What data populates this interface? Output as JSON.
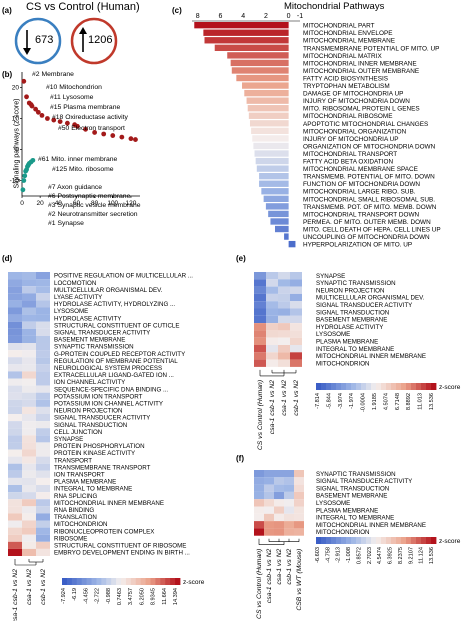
{
  "panel_a": {
    "label": "(a)",
    "title": "CS vs Control (Human)",
    "down_count": "673",
    "up_count": "1206",
    "down_color": "#3a7fc0",
    "up_color": "#c0392b"
  },
  "panel_b": {
    "label": "(b)",
    "ylabel": "Signaling pathways (z-score)",
    "yticks": [
      "20",
      "10",
      "0",
      "-10"
    ],
    "xticks": [
      "0",
      "20",
      "40",
      "60",
      "80",
      "100",
      "120"
    ],
    "up_annotations": [
      "#2 Membrane",
      "#10 Mitochondrion",
      "#11 Lysosome",
      "#15 Plasma membrane",
      "#18 Oxireductase activity",
      "#50 Electron transport",
      "#61 Mito. inner membrane",
      "#125 Mito. ribosome"
    ],
    "down_annotations": [
      "#7 Axon guidance",
      "#6 Postsynaptic membrane",
      "#3 Synaptic vesicle membrane",
      "#2 Neurotransmitter secretion",
      "#1 Synapse"
    ],
    "up_color": "#a31a1a",
    "down_color": "#1a9a8a"
  },
  "panel_c": {
    "label": "(c)",
    "title": "Mitochondrial Pathways",
    "xticks": [
      "8",
      "6",
      "4",
      "2",
      "0",
      "-1"
    ],
    "items": [
      "MITOCHONDRIAL PART",
      "MITOCHONDRIAL ENVELOPE",
      "MITOCHONDRIAL MEMBRANE",
      "TRANSMEMBRANE POTENTIAL OF MITO. UP",
      "MITOCHONDRIAL MATRIX",
      "MITOCHONDRIAL INNER MEMBRANE",
      "MITOCHONDRIAL OUTER MEMBRANE",
      "FATTY ACID BIOSYNTHESIS",
      "TRYPTOPHAN METABOLISM",
      "DAMAGE OF MITOCHONDRIA UP",
      "INJURY OF MITOCHONDRIA DOWN",
      "MITO. RIBOSOMAL PROTEIN L GENES",
      "MITOCHONDRIAL RIBOSOME",
      "APOPTOTIC MITOCHONDRIAL CHANGES",
      "MITOCHONDRIAL ORGANIZATION",
      "INJURY OF MITOCHONDRIA UP",
      "ORGANIZATION OF MITOCHONDRIA DOWN",
      "MITOCHONDRIAL TRANSPORT",
      "FATTY ACID BETA OXIDATION",
      "MITOCHONDRIAL MEMBRANE SPACE",
      "TRANSMEMB. POTENTIAL OF MITO. DOWN",
      "FUNCTION OF MITOCHONDRIA DOWN",
      "MITOCHONDRIAL LARGE RIBO. SUB.",
      "MITOCHONDRIAL SMALL RIBOSOMAL SUB.",
      "TRANSMEMB. POT. OF MITO. MEMB. DOWN",
      "MITOCHONDRIAL TRANSPORT DOWN",
      "PERMEA. OF MITO. OUTER MEMB. DOWN",
      "MITO. CELL DEATH OF HEPA. CELL LINES UP",
      "UNCOUPLING OF MITOCHONDRIA DOWN",
      "HYPERPOLARIZATION OF MITO. UP"
    ]
  },
  "chart_data": [
    {
      "type": "bar",
      "title": "Mitochondrial Pathways",
      "orientation": "horizontal",
      "xlim": [
        8.5,
        -1
      ],
      "categories": [
        "MITOCHONDRIAL PART",
        "MITOCHONDRIAL ENVELOPE",
        "MITOCHONDRIAL MEMBRANE",
        "TRANSMEMBRANE POTENTIAL OF MITO. UP",
        "MITOCHONDRIAL MATRIX",
        "MITOCHONDRIAL INNER MEMBRANE",
        "MITOCHONDRIAL OUTER MEMBRANE",
        "FATTY ACID BIOSYNTHESIS",
        "TRYPTOPHAN METABOLISM",
        "DAMAGE OF MITOCHONDRIA UP",
        "INJURY OF MITOCHONDRIA DOWN",
        "MITO. RIBOSOMAL PROTEIN L GENES",
        "MITOCHONDRIAL RIBOSOME",
        "APOPTOTIC MITOCHONDRIAL CHANGES",
        "MITOCHONDRIAL ORGANIZATION",
        "INJURY OF MITOCHONDRIA UP",
        "ORGANIZATION OF MITOCHONDRIA DOWN",
        "MITOCHONDRIAL TRANSPORT",
        "FATTY ACID BETA OXIDATION",
        "MITOCHONDRIAL MEMBRANE SPACE",
        "TRANSMEMB. POTENTIAL OF MITO. DOWN",
        "FUNCTION OF MITOCHONDRIA DOWN",
        "MITOCHONDRIAL LARGE RIBO. SUB.",
        "MITOCHONDRIAL SMALL RIBOSOMAL SUB.",
        "TRANSMEMB. POT. OF MITO. MEMB. DOWN",
        "MITOCHONDRIAL TRANSPORT DOWN",
        "PERMEA. OF MITO. OUTER MEMB. DOWN",
        "MITO. CELL DEATH OF HEPA. CELL LINES UP",
        "UNCOUPLING OF MITOCHONDRIA DOWN",
        "HYPERPOLARIZATION OF MITO. UP"
      ],
      "values": [
        8.3,
        7.5,
        7.4,
        6.5,
        5.4,
        5.1,
        5.0,
        4.6,
        4.1,
        3.9,
        3.7,
        3.6,
        3.5,
        3.4,
        3.3,
        3.2,
        3.1,
        3.0,
        2.9,
        2.8,
        2.6,
        2.6,
        2.4,
        2.2,
        2.0,
        1.8,
        1.6,
        1.2,
        0.4,
        -0.6
      ]
    },
    {
      "type": "scatter",
      "xlim": [
        0,
        130
      ],
      "ylim": [
        -15,
        25
      ],
      "series": [
        {
          "points_x": [
            2,
            5,
            8,
            10,
            11,
            15,
            18,
            22,
            28,
            35,
            42,
            50,
            58,
            61,
            70,
            80,
            90,
            100,
            110,
            120,
            125
          ],
          "points_y": [
            22,
            17,
            15,
            14.5,
            14,
            13,
            12,
            11,
            10,
            9.5,
            9,
            8.5,
            8,
            7.5,
            6.5,
            5.5,
            5,
            4.5,
            4,
            3.5,
            3.2
          ]
        },
        {
          "points_x": [
            1,
            2,
            3,
            4,
            5,
            6,
            7,
            8,
            10,
            12
          ],
          "points_y": [
            -13,
            -10,
            -8.5,
            -7,
            -6.5,
            -5.5,
            -5,
            -4.5,
            -4,
            -3.5
          ]
        }
      ]
    }
  ],
  "panel_d": {
    "label": "(d)",
    "rows": [
      "POSITIVE REGULATION OF MULTICELLULAR ...",
      "LOCOMOTION",
      "MULTICELLULAR ORGANISMAL DEV.",
      "LYASE ACTIVITY",
      "HYDROLASE ACTIVITY, HYDROLYZING ...",
      "LYSOSOME",
      "HYDROLASE ACTIVITY",
      "STRUCTURAL CONSTITUENT OF CUTICLE",
      "SIGNAL TRANSDUCER ACTIVITY",
      "BASEMENT MEMBRANE",
      "SYNAPTIC TRANSMISSION",
      "G-PROTEIN COUPLED RECEPTOR ACTIVITY",
      "REGULATION OF MEMBRANE POTENTIAL",
      "NEUROLOGICAL SYSTEM PROCESS",
      "EXTRACELLULAR LIGAND-GATED ION ...",
      "ION CHANNEL ACTIVITY",
      "SEQUENCE-SPECIFIC DNA BINDING ...",
      "POTASSIUM ION TRANSPORT",
      "POTASSIUM ION CHANNEL ACTIVITY",
      "NEURON PROJECTION",
      "SIGNAL TRANSDUCER ACTIVITY",
      "SIGNAL TRANSDUCTION",
      "CELL JUNCTION",
      "SYNAPSE",
      "PROTEIN PHOSPHORYLATION",
      "PROTEIN KINASE ACTIVITY",
      "TRANSPORT",
      "TRANSMEMBRANE TRANSPORT",
      "ION TRANSPORT",
      "PLASMA MEMBRANE",
      "INTEGRAL TO MEMBRANE",
      "RNA SPLICING",
      "MITOCHONDRIAL INNER MEMBRANE",
      "RNA BINDING",
      "TRANSLATION",
      "MITOCHONDRION",
      "RIBONUCLEOPROTEIN COMPLEX",
      "RIBOSOME",
      "STRUCTURAL CONSTITUENT OF RIBOSOME",
      "EMBRYO DEVELOPMENT ENDING IN BIRTH ..."
    ],
    "columns": [
      "csa-1 csb-1 vs N2",
      "csa-1 vs N2",
      "csb-1 vs N2"
    ],
    "scale_title": "z-score",
    "scale_ticks": [
      "-7.924",
      "-6.19",
      "-4.456",
      "-2.722",
      "-0.988",
      "0.7463",
      "3.4757",
      "6.2050",
      "8.9345",
      "11.664",
      "14.394"
    ]
  },
  "panel_e": {
    "label": "(e)",
    "rows": [
      "SYNAPSE",
      "SYNAPTIC TRANSMISSION",
      "NEURON PROJECTION",
      "MULTICELLULAR ORGANISMAL DEV.",
      "SIGNAL TRANSDUCER ACTIVITY",
      "SIGNAL TRANSDUCTION",
      "BASEMENT MEMBRANE",
      "HYDROLASE ACTIVITY",
      "LYSOSOME",
      "PLASMA MEMBRANE",
      "INTEGRAL TO MEMBRANE",
      "MITOCHONDRIAL INNER MEMBRANE",
      "MITOCHONDRION"
    ],
    "columns": [
      "CS vs Control (Human)",
      "csa-1 csb-1 vs N2",
      "csa-1 vs N2",
      "csb-1 vs N2"
    ],
    "scale_title": "z-score",
    "scale_ticks": [
      "-7.814",
      "-5.844",
      "-3.974",
      "-1.974",
      "-0.0004",
      "1.9185",
      "4.5074",
      "6.7148",
      "8.8892",
      "11.013",
      "13.536"
    ]
  },
  "panel_f": {
    "label": "(f)",
    "rows": [
      "SYNAPTIC TRANSMISSION",
      "SIGNAL TRANSDUCER ACTIVITY",
      "SIGNAL TRANSDUCTION",
      "BASEMENT MEMBRANE",
      "LYSOSOME",
      "PLASMA MEMBRANE",
      "INTEGRAL TO MEMBRANE",
      "MITOCHONDRIAL INNER MEMBRANE",
      "MITOCHONDRION"
    ],
    "columns": [
      "CS vs Control (Human)",
      "csa-1 csb-1 vs N2",
      "csa-1 vs N2",
      "csb-1 vs N2",
      "CSB vs WT (Mouse)"
    ],
    "scale_title": "z-score",
    "scale_ticks": [
      "-6.603",
      "-4.758",
      "-2.913",
      "-1.008",
      "0.8572",
      "2.7023",
      "4.5474",
      "6.3925",
      "8.2375",
      "9.2107",
      "11.124",
      "13.536"
    ]
  }
}
